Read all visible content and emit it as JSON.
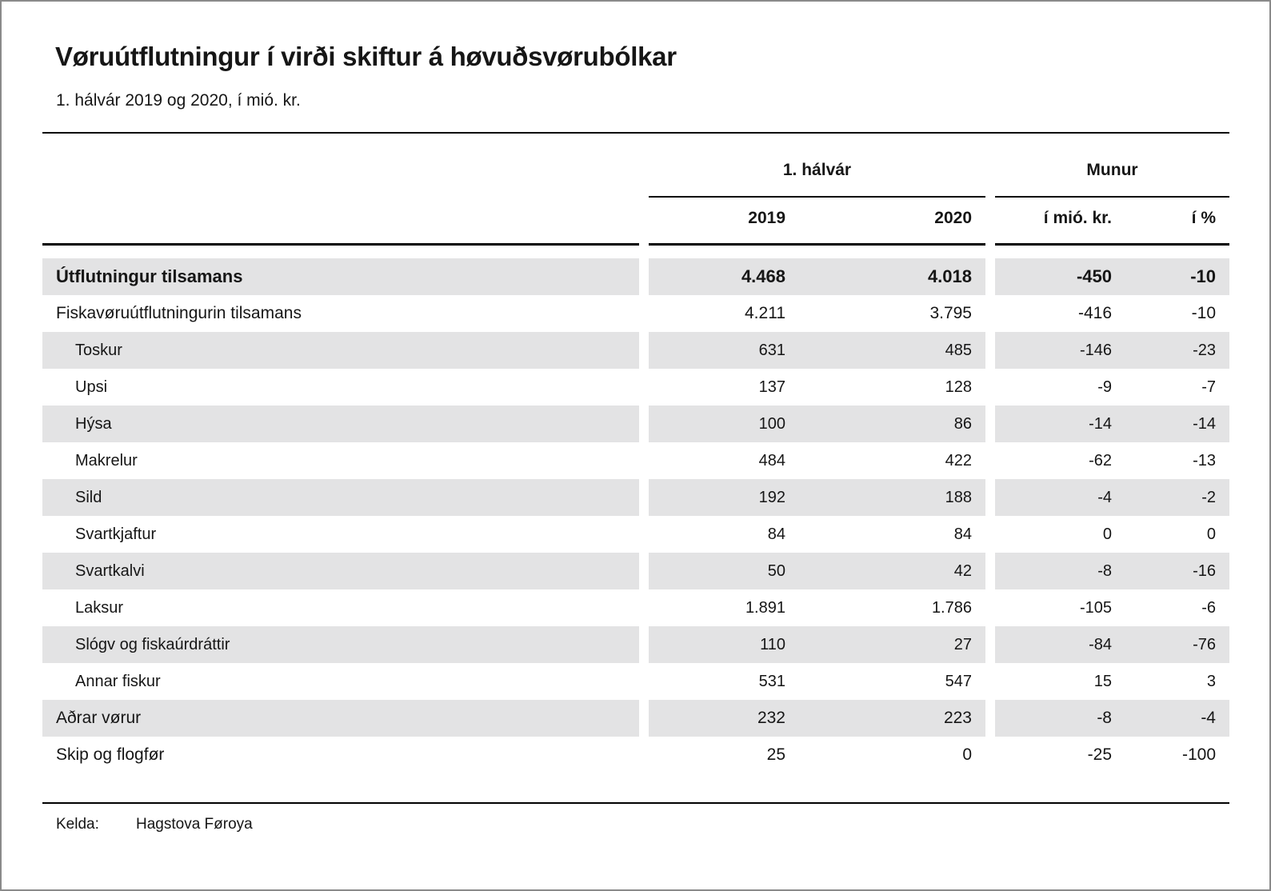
{
  "title": "Vøruútflutningur í virði skiftur á høvuðsvørubólkar",
  "subtitle": "1. hálvár 2019 og 2020, í mió. kr.",
  "chart_data": {
    "type": "table",
    "title": "Vøruútflutningur í virði skiftur á høvuðsvørubólkar",
    "subtitle": "1. hálvár 2019 og 2020, í mió. kr.",
    "unit": "mió. kr.",
    "col_groups": [
      {
        "label": "1. hálvár",
        "columns": [
          "2019",
          "2020"
        ]
      },
      {
        "label": "Munur",
        "columns": [
          "í mió. kr.",
          "í %"
        ]
      }
    ],
    "rows": [
      {
        "label": "Útflutningur tilsamans",
        "level": 0,
        "bold": true,
        "shaded": true,
        "values": [
          "4.468",
          "4.018",
          "-450",
          "-10"
        ]
      },
      {
        "label": "Fiskavøruútflutningurin tilsamans",
        "level": 0,
        "bold": false,
        "shaded": false,
        "values": [
          "4.211",
          "3.795",
          "-416",
          "-10"
        ]
      },
      {
        "label": "Toskur",
        "level": 1,
        "bold": false,
        "shaded": true,
        "values": [
          "631",
          "485",
          "-146",
          "-23"
        ]
      },
      {
        "label": "Upsi",
        "level": 1,
        "bold": false,
        "shaded": false,
        "values": [
          "137",
          "128",
          "-9",
          "-7"
        ]
      },
      {
        "label": "Hýsa",
        "level": 1,
        "bold": false,
        "shaded": true,
        "values": [
          "100",
          "86",
          "-14",
          "-14"
        ]
      },
      {
        "label": "Makrelur",
        "level": 1,
        "bold": false,
        "shaded": false,
        "values": [
          "484",
          "422",
          "-62",
          "-13"
        ]
      },
      {
        "label": "Sild",
        "level": 1,
        "bold": false,
        "shaded": true,
        "values": [
          "192",
          "188",
          "-4",
          "-2"
        ]
      },
      {
        "label": "Svartkjaftur",
        "level": 1,
        "bold": false,
        "shaded": false,
        "values": [
          "84",
          "84",
          "0",
          "0"
        ]
      },
      {
        "label": "Svartkalvi",
        "level": 1,
        "bold": false,
        "shaded": true,
        "values": [
          "50",
          "42",
          "-8",
          "-16"
        ]
      },
      {
        "label": "Laksur",
        "level": 1,
        "bold": false,
        "shaded": false,
        "values": [
          "1.891",
          "1.786",
          "-105",
          "-6"
        ]
      },
      {
        "label": "Slógv og fiskaúrdráttir",
        "level": 1,
        "bold": false,
        "shaded": true,
        "values": [
          "110",
          "27",
          "-84",
          "-76"
        ]
      },
      {
        "label": "Annar fiskur",
        "level": 1,
        "bold": false,
        "shaded": false,
        "values": [
          "531",
          "547",
          "15",
          "3"
        ]
      },
      {
        "label": "Aðrar vørur",
        "level": 0,
        "bold": false,
        "shaded": true,
        "values": [
          "232",
          "223",
          "-8",
          "-4"
        ]
      },
      {
        "label": "Skip og flogfør",
        "level": 0,
        "bold": false,
        "shaded": false,
        "values": [
          "25",
          "0",
          "-25",
          "-100"
        ]
      }
    ],
    "source": {
      "label": "Kelda:",
      "value": "Hagstova Føroya"
    }
  },
  "colors": {
    "row_shade": "#e3e3e4",
    "rule": "#000000",
    "text": "#161616",
    "page_border": "#8a8a8a",
    "background": "#ffffff"
  }
}
